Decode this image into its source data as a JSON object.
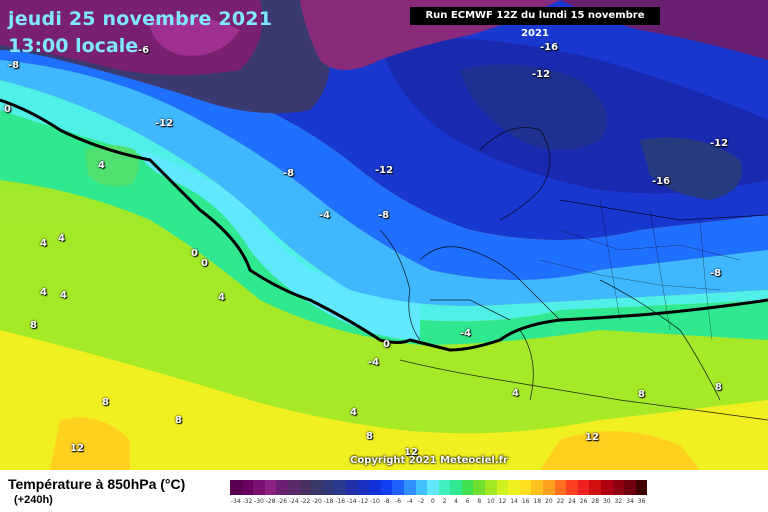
{
  "header": {
    "date": "jeudi 25 novembre 2021",
    "time": "13:00 locale",
    "run": "Run ECMWF 12Z du lundi 15 novembre 2021"
  },
  "copyright": "Copyright 2021 Meteociel.fr",
  "footer": {
    "title": "Température à 850hPa (°C)",
    "subtitle": "(+240h)"
  },
  "isotherm_labels": [
    "-8",
    "-6",
    "0",
    "-12",
    "-16",
    "-12",
    "-12",
    "-16",
    "-8",
    "-12",
    "-4",
    "-8",
    "4",
    "4",
    "4",
    "0",
    "0",
    "4",
    "4",
    "4",
    "8",
    "0",
    "-4",
    "-4",
    "-8",
    "4",
    "8",
    "8",
    "4",
    "8",
    "12",
    "12",
    "12",
    "8",
    "8"
  ],
  "scale": {
    "labels": [
      "-34",
      "-32",
      "-30",
      "-28",
      "-26",
      "-24",
      "-22",
      "-20",
      "-18",
      "-16",
      "-14",
      "-12",
      "-10",
      "-8",
      "-6",
      "-4",
      "-2",
      "0",
      "2",
      "4",
      "6",
      "8",
      "10",
      "12",
      "14",
      "16",
      "18",
      "20",
      "22",
      "24",
      "26",
      "28",
      "30",
      "32",
      "34",
      "36"
    ],
    "colors": [
      "#5a0050",
      "#6a0060",
      "#7a1070",
      "#8a2080",
      "#6a2070",
      "#5a2a6a",
      "#4a3060",
      "#3a3a6a",
      "#303a7a",
      "#2a3a90",
      "#2030a8",
      "#1a30c0",
      "#1030d8",
      "#1040f0",
      "#2060ff",
      "#3090ff",
      "#40c0ff",
      "#60e8ff",
      "#40f0c0",
      "#30e890",
      "#40e050",
      "#70e030",
      "#a0e820",
      "#d0f020",
      "#f0f020",
      "#ffe020",
      "#ffc020",
      "#ffa020",
      "#ff7020",
      "#ff4020",
      "#f02020",
      "#d01010",
      "#b00010",
      "#900010",
      "#700010",
      "#400000"
    ]
  }
}
